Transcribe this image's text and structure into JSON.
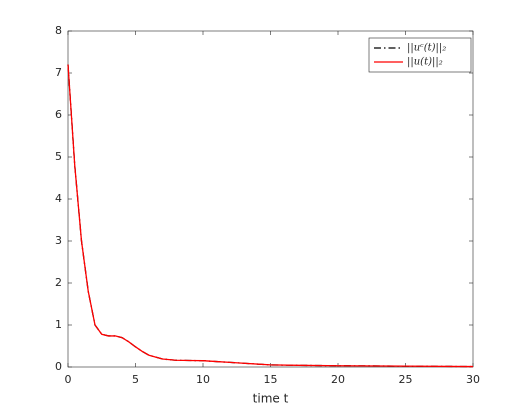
{
  "chart_data": {
    "type": "line",
    "xlabel": "time t",
    "x": [
      0,
      0.5,
      1,
      1.5,
      2,
      2.5,
      3,
      3.5,
      4,
      4.5,
      5,
      5.5,
      6,
      7,
      8,
      9,
      10,
      11,
      12,
      13,
      14,
      15,
      17,
      20,
      25,
      30
    ],
    "series": [
      {
        "name": "||uᶜ(t)||₂",
        "color": "#000000",
        "dash": "dashdot",
        "values": [
          7.2,
          4.8,
          3.0,
          1.8,
          1.0,
          0.78,
          0.74,
          0.74,
          0.7,
          0.6,
          0.48,
          0.37,
          0.28,
          0.19,
          0.16,
          0.155,
          0.15,
          0.13,
          0.11,
          0.09,
          0.07,
          0.05,
          0.04,
          0.03,
          0.02,
          0.01
        ]
      },
      {
        "name": "||u(t)||₂",
        "color": "#ff0000",
        "dash": "solid",
        "values": [
          7.2,
          4.8,
          3.0,
          1.8,
          1.0,
          0.78,
          0.74,
          0.74,
          0.7,
          0.6,
          0.48,
          0.37,
          0.28,
          0.19,
          0.16,
          0.155,
          0.15,
          0.13,
          0.11,
          0.09,
          0.07,
          0.05,
          0.04,
          0.03,
          0.02,
          0.01
        ]
      }
    ],
    "xlim": [
      0,
      30
    ],
    "ylim": [
      0,
      8
    ],
    "xticks": [
      0,
      5,
      10,
      15,
      20,
      25,
      30
    ],
    "yticks": [
      0,
      1,
      2,
      3,
      4,
      5,
      6,
      7,
      8
    ],
    "grid": false,
    "legend": "northeast"
  }
}
